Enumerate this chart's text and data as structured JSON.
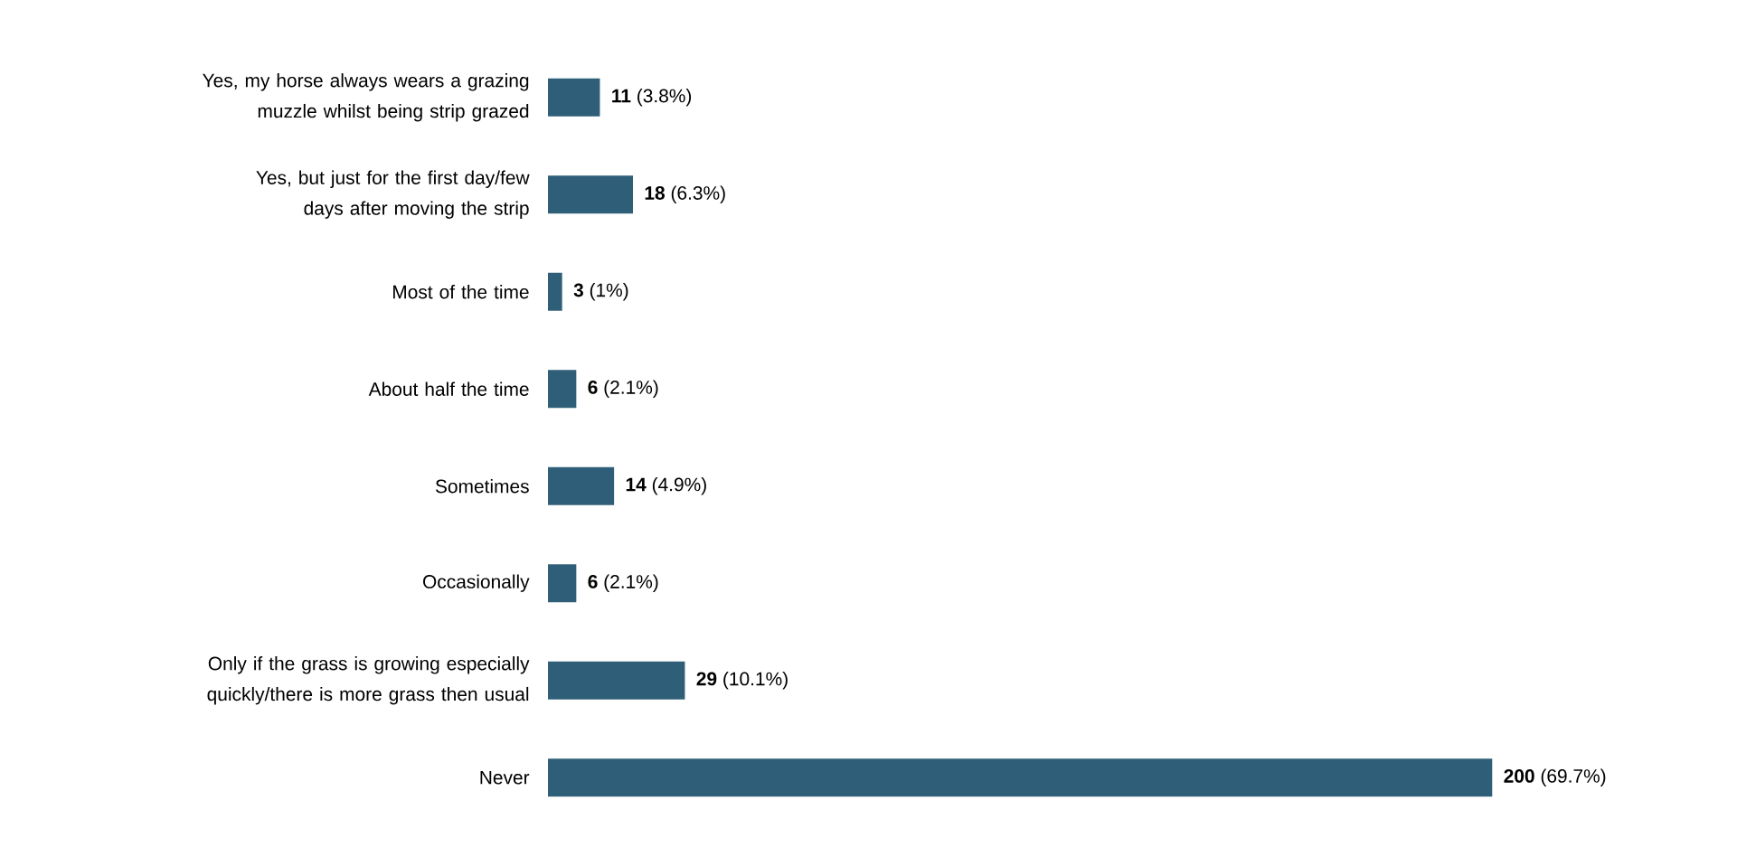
{
  "chart_data": {
    "type": "bar",
    "orientation": "horizontal",
    "categories": [
      "Yes, my horse always wears a grazing muzzle whilst being strip grazed",
      "Yes, but just for the first day/few days after moving the strip",
      "Most of the time",
      "About half the time",
      "Sometimes",
      "Occasionally",
      "Only if the grass is growing especially quickly/there is more grass then usual",
      "Never"
    ],
    "values": [
      11,
      18,
      3,
      6,
      14,
      6,
      29,
      200
    ],
    "value_labels": [
      "**11** (3.8%)",
      "**18** (6.3%)",
      "**3** (1%)",
      "**6** (2.1%)",
      "**14** (4.9%)",
      "**6** (2.1%)",
      "**29** (10.1%)",
      "**200** (69.7%)"
    ],
    "color": "#2f5f78"
  }
}
